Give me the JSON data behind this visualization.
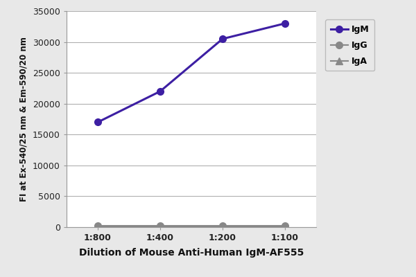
{
  "x_labels": [
    "1:800",
    "1:400",
    "1:200",
    "1:100"
  ],
  "x_positions": [
    0,
    1,
    2,
    3
  ],
  "IgM_values": [
    17000,
    22000,
    30500,
    33000
  ],
  "IgG_values": [
    200,
    200,
    200,
    200
  ],
  "IgA_values": [
    100,
    100,
    100,
    100
  ],
  "IgM_color": "#3D1FA3",
  "IgG_color": "#888888",
  "IgA_color": "#888888",
  "ylim": [
    0,
    35000
  ],
  "yticks": [
    0,
    5000,
    10000,
    15000,
    20000,
    25000,
    30000,
    35000
  ],
  "xlabel": "Dilution of Mouse Anti-Human IgM-AF555",
  "ylabel": "FI at Ex-540/25 nm & Em-590/20 nm",
  "legend_labels": [
    "IgM",
    "IgG",
    "IgA"
  ],
  "bg_color": "#e8e8e8",
  "plot_bg_color": "#ffffff",
  "grid_color": "#b0b0b0"
}
